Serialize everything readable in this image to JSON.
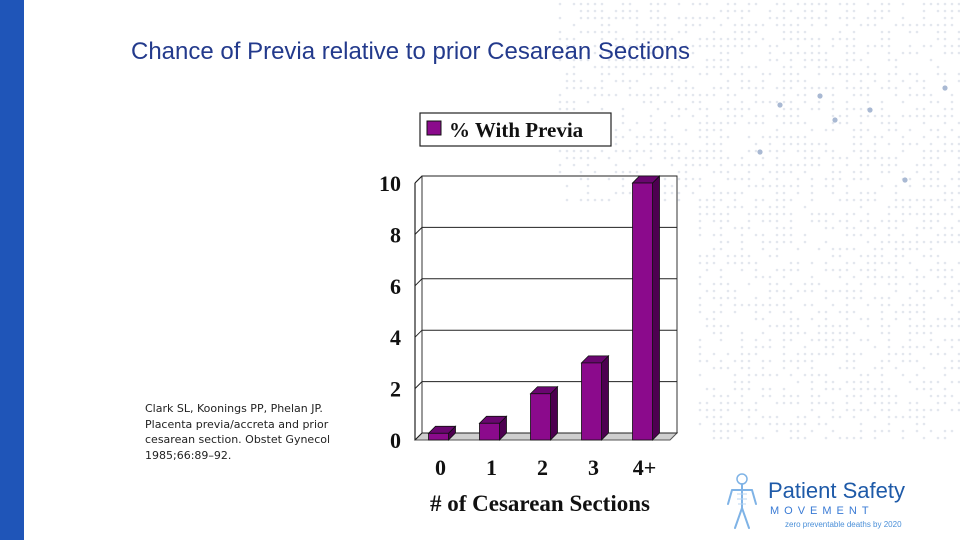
{
  "slide": {
    "title": "Chance of Previa relative to prior Cesarean Sections",
    "citation": "Clark SL, Koonings PP, Phelan JP. Placenta previa/accreta and prior cesarean section. Obstet Gynecol 1985;66:89–92."
  },
  "logo": {
    "name": "Patient Safety",
    "subtitle": "MOVEMENT",
    "tagline": "zero preventable deaths by 2020"
  },
  "colors": {
    "accent_bar": "#1f55b8",
    "bar_fill": "#8b0a8c",
    "bar_side": "#4d0050",
    "title": "#233a8c"
  },
  "chart_data": {
    "type": "bar",
    "categories": [
      "0",
      "1",
      "2",
      "3",
      "4+"
    ],
    "series": [
      {
        "name": "% With Previa",
        "values": [
          0.26,
          0.65,
          1.8,
          3.0,
          10.0
        ]
      }
    ],
    "title": "",
    "xlabel": "# of Cesarean Sections",
    "ylabel": "",
    "ylim": [
      0,
      10
    ],
    "yticks": [
      0,
      2,
      4,
      6,
      8,
      10
    ],
    "grid": true,
    "legend": "top",
    "style": "3d"
  }
}
